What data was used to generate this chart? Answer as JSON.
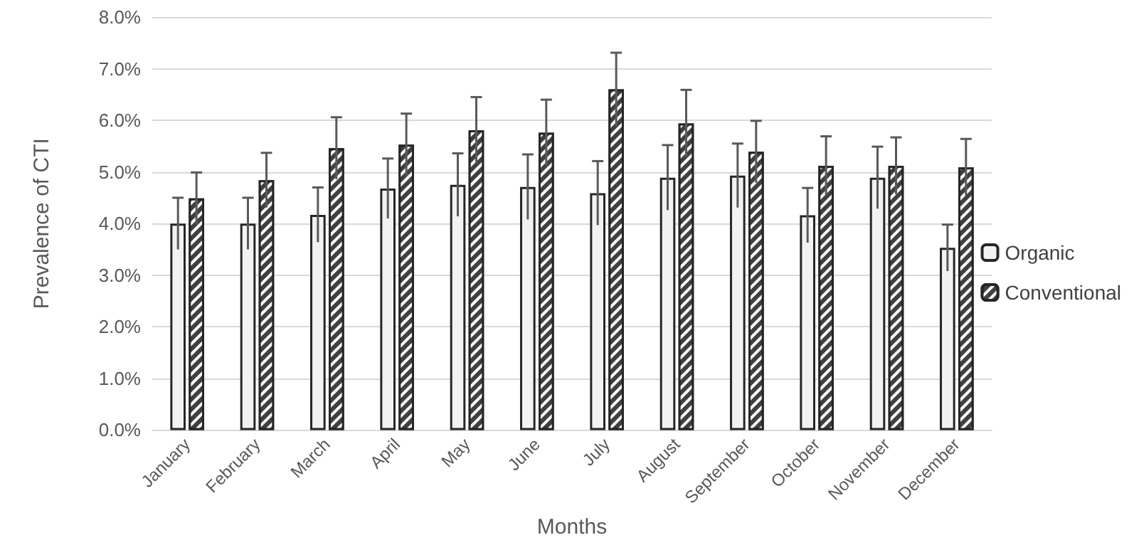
{
  "chart_data": {
    "type": "bar",
    "xlabel": "Months",
    "ylabel": "Prevalence of CTI",
    "categories": [
      "January",
      "February",
      "March",
      "April",
      "May",
      "June",
      "July",
      "August",
      "September",
      "October",
      "November",
      "December"
    ],
    "series": [
      {
        "name": "Organic",
        "color": "#f2f2f2",
        "values": [
          4.0,
          4.0,
          4.17,
          4.68,
          4.75,
          4.71,
          4.59,
          4.89,
          4.93,
          4.16,
          4.89,
          3.53
        ],
        "errors": [
          0.5,
          0.5,
          0.53,
          0.58,
          0.61,
          0.63,
          0.62,
          0.63,
          0.62,
          0.53,
          0.6,
          0.45
        ]
      },
      {
        "name": "Conventional",
        "color": "#404040",
        "values": [
          4.49,
          4.84,
          5.46,
          5.53,
          5.81,
          5.76,
          6.6,
          5.94,
          5.39,
          5.12,
          5.12,
          5.09
        ],
        "errors": [
          0.5,
          0.53,
          0.6,
          0.6,
          0.64,
          0.64,
          0.71,
          0.65,
          0.6,
          0.57,
          0.55,
          0.55
        ]
      }
    ],
    "ylim": [
      0,
      8
    ],
    "yticks": [
      {
        "value": 0,
        "label": "0.0%"
      },
      {
        "value": 1,
        "label": "1.0%"
      },
      {
        "value": 2,
        "label": "2.0%"
      },
      {
        "value": 3,
        "label": "3.0%"
      },
      {
        "value": 4,
        "label": "4.0%"
      },
      {
        "value": 5,
        "label": "5.0%"
      },
      {
        "value": 6,
        "label": "6.0%"
      },
      {
        "value": 7,
        "label": "7.0%"
      },
      {
        "value": 8,
        "label": "8.0%"
      }
    ],
    "grid": "y",
    "legend": "right"
  }
}
